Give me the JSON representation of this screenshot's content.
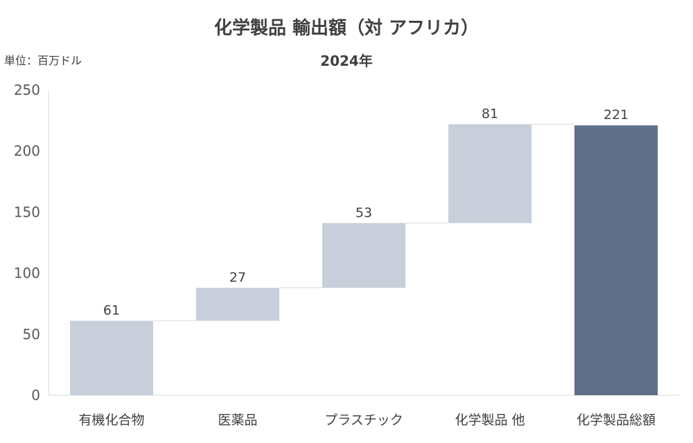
{
  "chart_data": {
    "type": "bar",
    "subtype": "waterfall",
    "title": "化学製品 輸出額（対 アフリカ）",
    "subtitle": "2024年",
    "unit_label": "単位：百万ドル",
    "categories": [
      "有機化合物",
      "医薬品",
      "プラスチック",
      "化学製品 他",
      "化学製品総額"
    ],
    "values": [
      61,
      27,
      53,
      81,
      221
    ],
    "total_index": 4,
    "ylim": [
      0,
      250
    ],
    "yticks": [
      0,
      50,
      100,
      150,
      200,
      250
    ],
    "grid": false,
    "colors": {
      "increment": "#c8cfdb",
      "total": "#5f6e89",
      "connector": "#d9d9d9",
      "axis": "#d9d9d9"
    }
  }
}
